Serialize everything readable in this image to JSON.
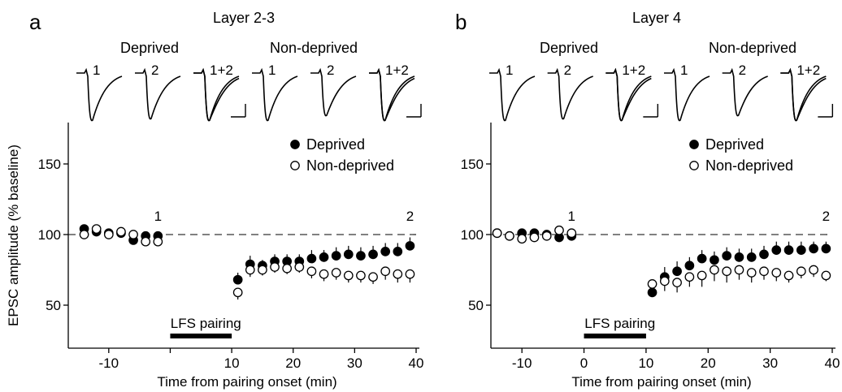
{
  "chart_data": [
    {
      "type": "scatter",
      "panel_letter": "a",
      "title": "Layer 2-3",
      "xlabel": "Time from pairing onset (min)",
      "ylabel": "EPSC amplitude (% baseline)",
      "xlim": [
        -15,
        40
      ],
      "ylim": [
        25,
        175
      ],
      "xticks": [
        -10,
        0,
        10,
        20,
        30,
        40
      ],
      "xtick_labels": [
        "-10",
        "",
        "10",
        "20",
        "30",
        "40"
      ],
      "yticks": [
        50,
        100,
        150
      ],
      "ytick_labels": [
        "50",
        "100",
        "150"
      ],
      "reference_line": 100,
      "bar": {
        "label": "LFS pairing",
        "x_start": 0,
        "x_end": 10
      },
      "markers": [
        {
          "label": "1",
          "x": -2,
          "y": 104
        },
        {
          "label": "2",
          "x": 39,
          "y": 104
        }
      ],
      "legend": {
        "position": "top-right",
        "entries": [
          "Deprived",
          "Non-deprived"
        ]
      },
      "trace_groups": [
        "Deprived",
        "Non-deprived"
      ],
      "trace_labels": [
        "1",
        "2",
        "1+2"
      ],
      "series": [
        {
          "name": "Deprived",
          "marker": "filled-circle",
          "x": [
            -14,
            -12,
            -10,
            -8,
            -6,
            -4,
            -2,
            11,
            13,
            15,
            17,
            19,
            21,
            23,
            25,
            27,
            29,
            31,
            33,
            35,
            37,
            39
          ],
          "y": [
            104,
            102,
            101,
            101,
            96,
            99,
            99,
            68,
            79,
            78,
            81,
            81,
            81,
            83,
            84,
            85,
            86,
            85,
            86,
            88,
            88,
            92
          ],
          "err": [
            2,
            2,
            2,
            2,
            3,
            3,
            3,
            5,
            6,
            4,
            5,
            5,
            5,
            6,
            5,
            6,
            6,
            6,
            6,
            6,
            6,
            6
          ]
        },
        {
          "name": "Non-deprived",
          "marker": "open-circle",
          "x": [
            -14,
            -12,
            -10,
            -8,
            -6,
            -4,
            -2,
            11,
            13,
            15,
            17,
            19,
            21,
            23,
            25,
            27,
            29,
            31,
            33,
            35,
            37,
            39
          ],
          "y": [
            100,
            104,
            100,
            102,
            100,
            95,
            95,
            59,
            75,
            75,
            77,
            76,
            77,
            74,
            72,
            73,
            71,
            71,
            70,
            74,
            72,
            72
          ],
          "err": [
            2,
            2,
            2,
            2,
            2,
            2,
            2,
            5,
            5,
            4,
            4,
            4,
            4,
            5,
            5,
            5,
            5,
            5,
            5,
            6,
            6,
            6
          ]
        }
      ]
    },
    {
      "type": "scatter",
      "panel_letter": "b",
      "title": "Layer 4",
      "xlabel": "Time from pairing onset (min)",
      "ylabel": "",
      "xlim": [
        -15,
        40
      ],
      "ylim": [
        25,
        175
      ],
      "xticks": [
        -10,
        0,
        10,
        20,
        30,
        40
      ],
      "xtick_labels": [
        "-10",
        "0",
        "10",
        "20",
        "30",
        "40"
      ],
      "yticks": [
        50,
        100,
        150
      ],
      "ytick_labels": [
        "50",
        "100",
        "150"
      ],
      "reference_line": 100,
      "bar": {
        "label": "LFS pairing",
        "x_start": 0,
        "x_end": 10
      },
      "markers": [
        {
          "label": "1",
          "x": -2,
          "y": 104
        },
        {
          "label": "2",
          "x": 39,
          "y": 104
        }
      ],
      "legend": {
        "position": "top-right",
        "entries": [
          "Deprived",
          "Non-deprived"
        ]
      },
      "trace_groups": [
        "Deprived",
        "Non-deprived"
      ],
      "trace_labels": [
        "1",
        "2",
        "1+2"
      ],
      "series": [
        {
          "name": "Deprived",
          "marker": "filled-circle",
          "x": [
            -14,
            -12,
            -10,
            -8,
            -6,
            -4,
            -2,
            11,
            13,
            15,
            17,
            19,
            21,
            23,
            25,
            27,
            29,
            31,
            33,
            35,
            37,
            39
          ],
          "y": [
            101,
            99,
            101,
            101,
            100,
            98,
            99,
            59,
            70,
            74,
            78,
            83,
            82,
            85,
            84,
            84,
            86,
            89,
            89,
            89,
            90,
            90
          ],
          "err": [
            2,
            2,
            2,
            3,
            2,
            3,
            3,
            6,
            7,
            7,
            6,
            6,
            6,
            6,
            6,
            6,
            6,
            6,
            6,
            6,
            5,
            5
          ]
        },
        {
          "name": "Non-deprived",
          "marker": "open-circle",
          "x": [
            -14,
            -12,
            -10,
            -8,
            -6,
            -4,
            -2,
            11,
            13,
            15,
            17,
            19,
            21,
            23,
            25,
            27,
            29,
            31,
            33,
            35,
            37,
            39
          ],
          "y": [
            101,
            99,
            97,
            98,
            99,
            103,
            101,
            65,
            67,
            66,
            70,
            71,
            75,
            74,
            75,
            73,
            74,
            73,
            71,
            74,
            75,
            71
          ],
          "err": [
            2,
            2,
            2,
            2,
            2,
            3,
            3,
            6,
            7,
            7,
            7,
            8,
            8,
            8,
            7,
            7,
            6,
            6,
            5,
            5,
            5,
            4
          ]
        }
      ]
    }
  ]
}
